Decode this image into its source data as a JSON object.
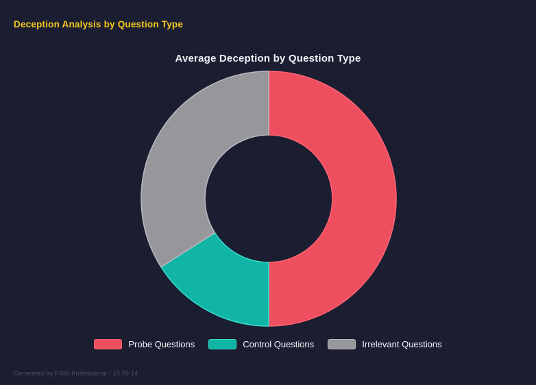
{
  "page": {
    "title": "Deception Analysis by Question Type",
    "footer": "Generated by P300 Professional - 10:05:14"
  },
  "chart_data": {
    "type": "doughnut",
    "title": "Average Deception by Question Type",
    "labels": [
      "Probe Questions",
      "Control Questions",
      "Irrelevant Questions"
    ],
    "values_pct": [
      50,
      16,
      34
    ],
    "colors": [
      "#ee4f5e",
      "#10b5a6",
      "#96969b"
    ],
    "border_colors": [
      "#ff6373",
      "#36d9c8",
      "#b8b9be"
    ],
    "cutout_pct": 50,
    "start_angle_deg": 0,
    "legend_position": "bottom",
    "grid": false
  },
  "colors": {
    "background": "#1b1e31",
    "page_title": "#f5c81f",
    "chart_title": "#eef0f4",
    "legend_text": "#f5f6fa",
    "footer_text": "#4a5068"
  }
}
